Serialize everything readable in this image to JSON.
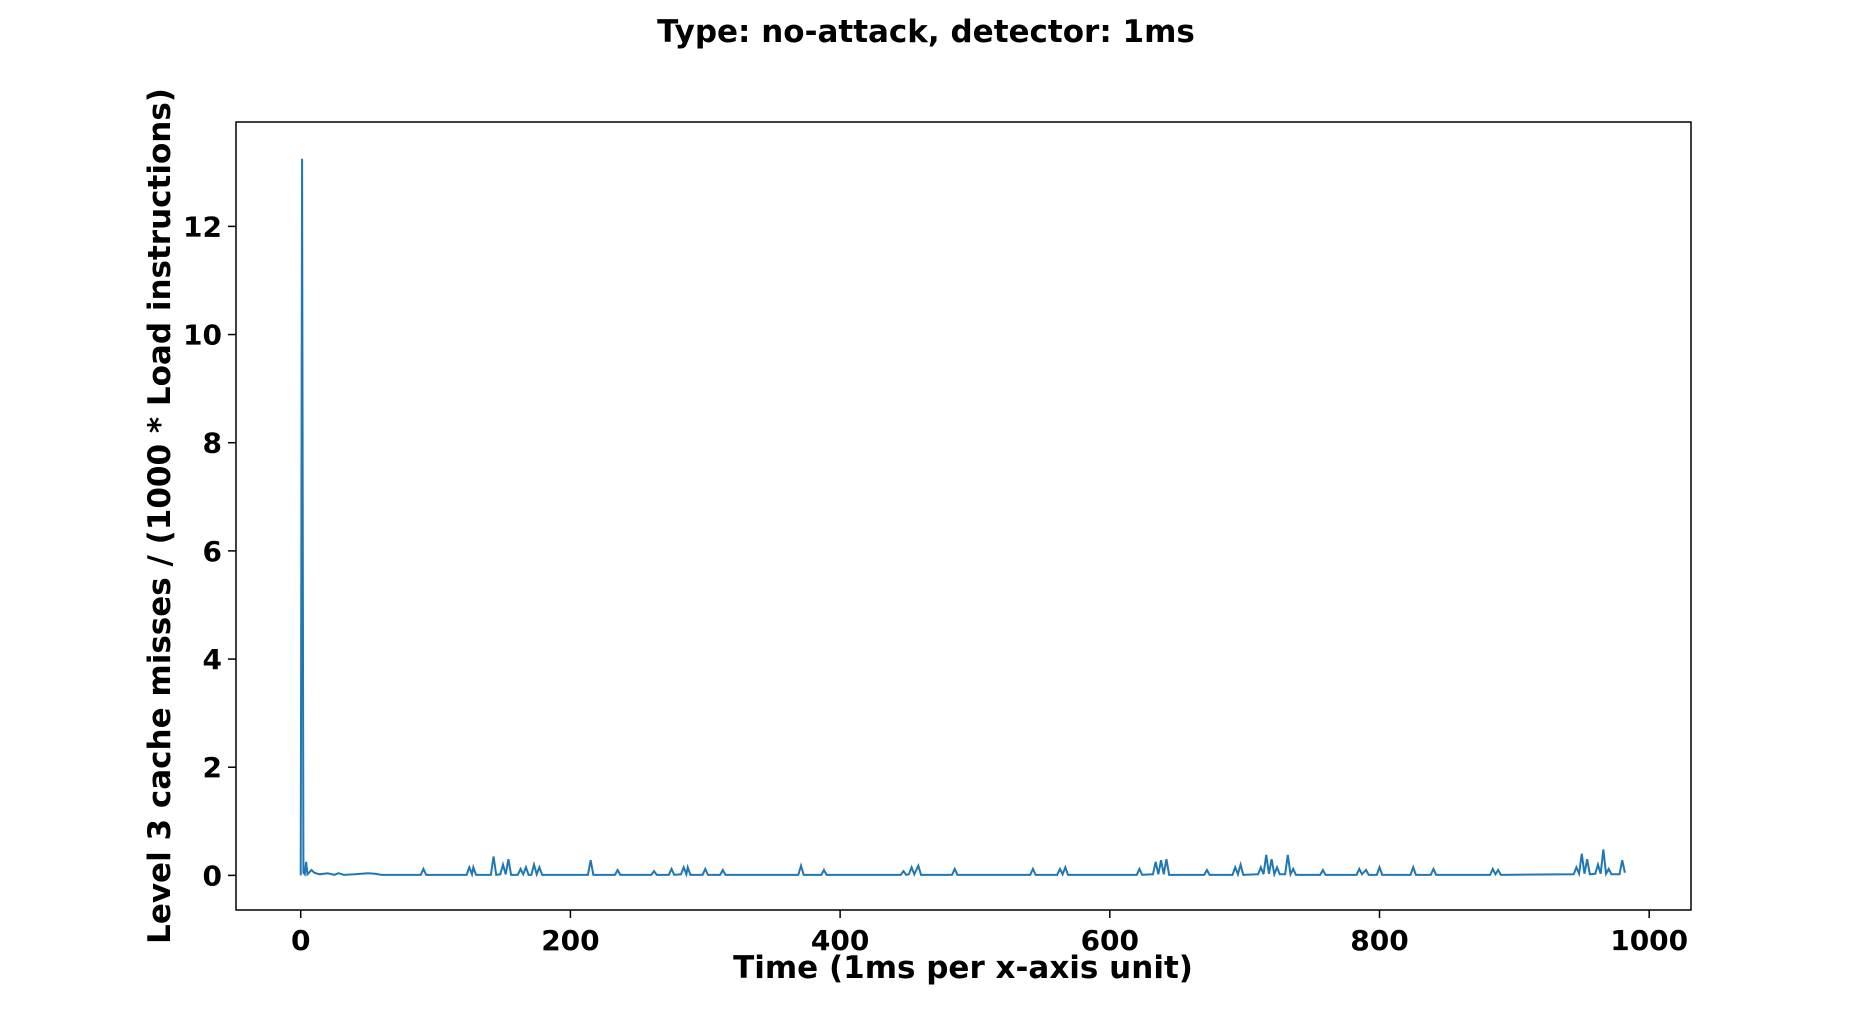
{
  "chart_data": {
    "type": "line",
    "title": "Type: no-attack,   detector: 1ms",
    "xlabel": "Time (1ms per x-axis unit)",
    "ylabel": "Level 3 cache misses / (1000 * Load instructions)",
    "color": "#1f77b4",
    "xlim": [
      -48,
      1031
    ],
    "ylim": [
      -0.64,
      13.93
    ],
    "xticks": [
      0,
      200,
      400,
      600,
      800,
      1000
    ],
    "yticks": [
      0,
      2,
      4,
      6,
      8,
      10,
      12
    ],
    "x": [
      0,
      1,
      2,
      3,
      4,
      5,
      8,
      10,
      14,
      20,
      25,
      28,
      32,
      40,
      50,
      55,
      60,
      89,
      91,
      93,
      123,
      125,
      127,
      128,
      130,
      141,
      143,
      145,
      148,
      150,
      152,
      154,
      156,
      161,
      163,
      165,
      167,
      169,
      171,
      173,
      175,
      177,
      179,
      213,
      215,
      217,
      233,
      235,
      237,
      260,
      262,
      264,
      273,
      275,
      277,
      282,
      284,
      286,
      287,
      289,
      298,
      300,
      302,
      311,
      313,
      315,
      369,
      371,
      373,
      386,
      388,
      390,
      445,
      447,
      449,
      451,
      453,
      455,
      458,
      460,
      483,
      485,
      487,
      541,
      543,
      545,
      561,
      563,
      565,
      567,
      569,
      620,
      622,
      624,
      632,
      634,
      636,
      638,
      640,
      642,
      644,
      670,
      672,
      674,
      691,
      693,
      695,
      697,
      699,
      710,
      712,
      714,
      716,
      718,
      720,
      722,
      724,
      726,
      730,
      732,
      734,
      736,
      738,
      756,
      758,
      760,
      783,
      785,
      787,
      790,
      792,
      798,
      800,
      802,
      823,
      825,
      827,
      838,
      840,
      842,
      882,
      884,
      886,
      888,
      890,
      944,
      946,
      948,
      950,
      952,
      954,
      956,
      960,
      962,
      964,
      966,
      968,
      970,
      972,
      978,
      980,
      982
    ],
    "values": [
      0,
      13.25,
      0.05,
      0.02,
      0.25,
      0.02,
      0.1,
      0.05,
      0.02,
      0.04,
      0.01,
      0.04,
      0.01,
      0.02,
      0.04,
      0.03,
      0.01,
      0.01,
      0.12,
      0.01,
      0.01,
      0.15,
      0.02,
      0.15,
      0.01,
      0.01,
      0.35,
      0.01,
      0.02,
      0.2,
      0.02,
      0.3,
      0.01,
      0.01,
      0.12,
      0.02,
      0.15,
      0.01,
      0.01,
      0.2,
      0.02,
      0.15,
      0.01,
      0.01,
      0.28,
      0.01,
      0.01,
      0.1,
      0.01,
      0.01,
      0.08,
      0.01,
      0.01,
      0.12,
      0.01,
      0.02,
      0.15,
      0.02,
      0.15,
      0.01,
      0.01,
      0.12,
      0.01,
      0.01,
      0.1,
      0.01,
      0.01,
      0.18,
      0.01,
      0.01,
      0.1,
      0.01,
      0.01,
      0.08,
      0.01,
      0.02,
      0.15,
      0.02,
      0.18,
      0.01,
      0.01,
      0.12,
      0.01,
      0.01,
      0.12,
      0.01,
      0.01,
      0.12,
      0.02,
      0.15,
      0.01,
      0.01,
      0.12,
      0.01,
      0.02,
      0.25,
      0.02,
      0.28,
      0.02,
      0.3,
      0.01,
      0.01,
      0.1,
      0.01,
      0.01,
      0.15,
      0.02,
      0.2,
      0.01,
      0.02,
      0.15,
      0.02,
      0.38,
      0.03,
      0.3,
      0.02,
      0.15,
      0.02,
      0.02,
      0.38,
      0.02,
      0.12,
      0.01,
      0.01,
      0.1,
      0.01,
      0.01,
      0.12,
      0.02,
      0.1,
      0.01,
      0.01,
      0.15,
      0.01,
      0.01,
      0.15,
      0.01,
      0.01,
      0.12,
      0.01,
      0.01,
      0.12,
      0.02,
      0.1,
      0.01,
      0.02,
      0.15,
      0.03,
      0.4,
      0.03,
      0.3,
      0.02,
      0.03,
      0.2,
      0.03,
      0.48,
      0.03,
      0.12,
      0.02,
      0.02,
      0.28,
      0.05
    ]
  }
}
